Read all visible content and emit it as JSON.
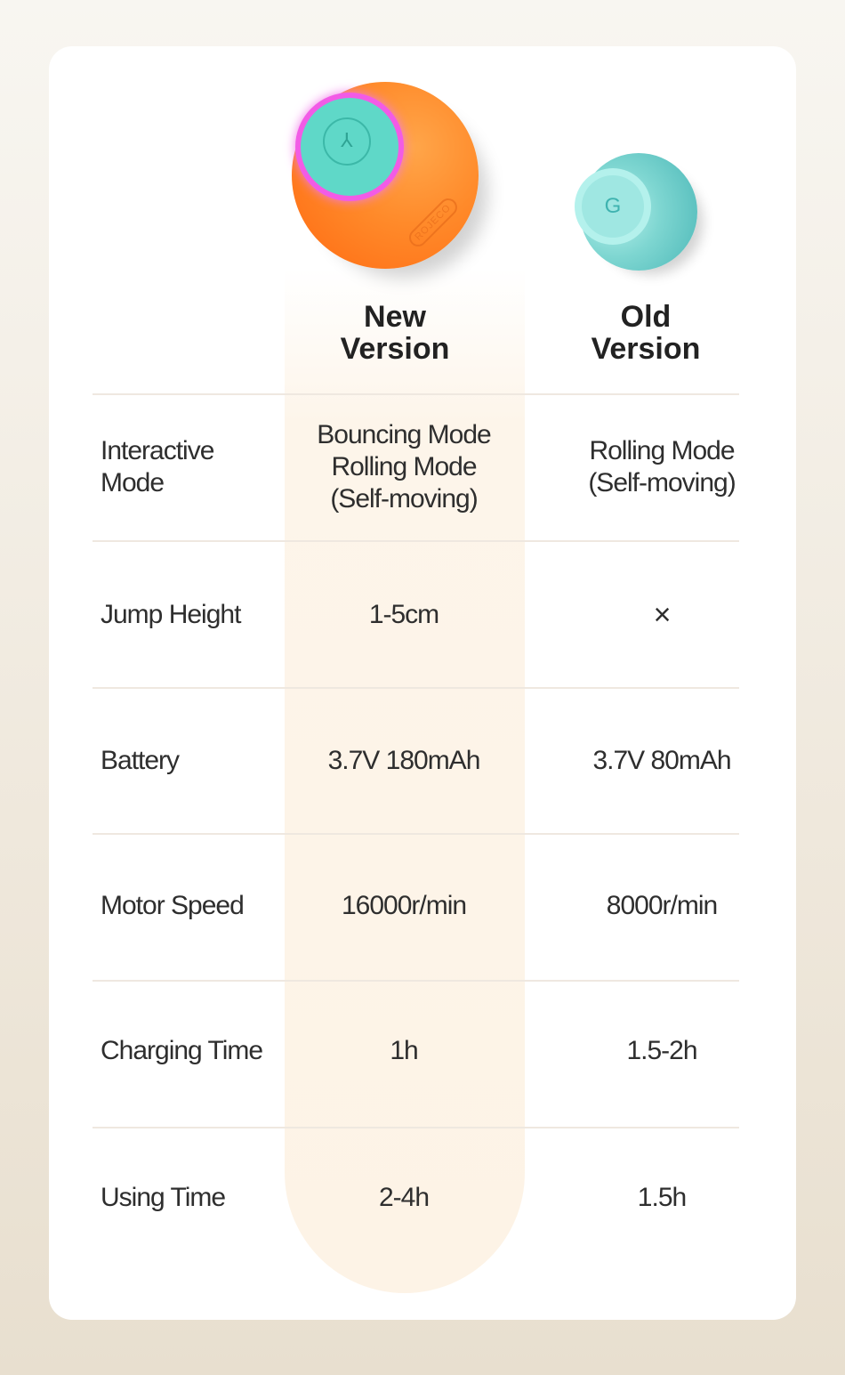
{
  "products": {
    "new": {
      "heading": "New Version",
      "heading_lines": [
        "New",
        "Version"
      ],
      "brand_mark": "ROJECO",
      "color": "#ff7a1f"
    },
    "old": {
      "heading": "Old Version",
      "heading_lines": [
        "Old",
        "Version"
      ],
      "color": "#7ed6d1"
    }
  },
  "rows": [
    {
      "label_lines": [
        "Interactive",
        "Mode"
      ],
      "new_lines": [
        "Bouncing Mode",
        "Rolling Mode",
        "(Self-moving)"
      ],
      "old_lines": [
        "Rolling Mode",
        "(Self-moving)"
      ]
    },
    {
      "label": "Jump Height",
      "new": "1-5cm",
      "old": "×"
    },
    {
      "label": "Battery",
      "new": "3.7V 180mAh",
      "old": "3.7V 80mAh"
    },
    {
      "label": "Motor Speed",
      "new": "16000r/min",
      "old": "8000r/min"
    },
    {
      "label": "Charging Time",
      "new": "1h",
      "old": "1.5-2h"
    },
    {
      "label": "Using Time",
      "new": "2-4h",
      "old": "1.5h"
    }
  ]
}
